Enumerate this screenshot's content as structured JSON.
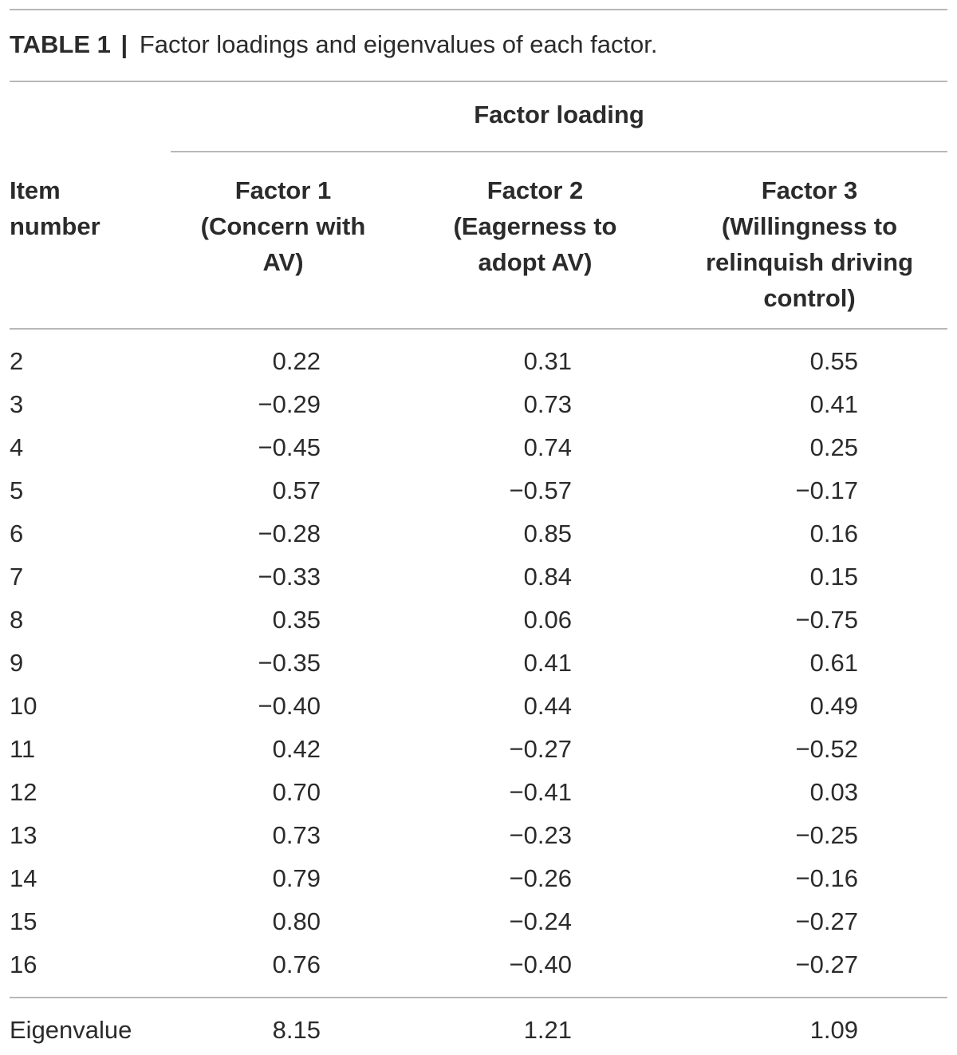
{
  "caption": {
    "label": "TABLE 1",
    "separator": "|",
    "text": "Factor loadings and eigenvalues of each factor."
  },
  "group_header": "Factor loading",
  "columns": {
    "item": [
      "Item",
      "number"
    ],
    "factor1": [
      "Factor 1",
      "(Concern with",
      "AV)"
    ],
    "factor2": [
      "Factor 2",
      "(Eagerness to",
      "adopt AV)"
    ],
    "factor3": [
      "Factor 3",
      "(Willingness to",
      "relinquish driving",
      "control)"
    ]
  },
  "rows": [
    {
      "item": "2",
      "f1": "0.22",
      "f2": "0.31",
      "f3": "0.55"
    },
    {
      "item": "3",
      "f1": "−0.29",
      "f2": "0.73",
      "f3": "0.41"
    },
    {
      "item": "4",
      "f1": "−0.45",
      "f2": "0.74",
      "f3": "0.25"
    },
    {
      "item": "5",
      "f1": "0.57",
      "f2": "−0.57",
      "f3": "−0.17"
    },
    {
      "item": "6",
      "f1": "−0.28",
      "f2": "0.85",
      "f3": "0.16"
    },
    {
      "item": "7",
      "f1": "−0.33",
      "f2": "0.84",
      "f3": "0.15"
    },
    {
      "item": "8",
      "f1": "0.35",
      "f2": "0.06",
      "f3": "−0.75"
    },
    {
      "item": "9",
      "f1": "−0.35",
      "f2": "0.41",
      "f3": "0.61"
    },
    {
      "item": "10",
      "f1": "−0.40",
      "f2": "0.44",
      "f3": "0.49"
    },
    {
      "item": "11",
      "f1": "0.42",
      "f2": "−0.27",
      "f3": "−0.52"
    },
    {
      "item": "12",
      "f1": "0.70",
      "f2": "−0.41",
      "f3": "0.03"
    },
    {
      "item": "13",
      "f1": "0.73",
      "f2": "−0.23",
      "f3": "−0.25"
    },
    {
      "item": "14",
      "f1": "0.79",
      "f2": "−0.26",
      "f3": "−0.16"
    },
    {
      "item": "15",
      "f1": "0.80",
      "f2": "−0.24",
      "f3": "−0.27"
    },
    {
      "item": "16",
      "f1": "0.76",
      "f2": "−0.40",
      "f3": "−0.27"
    }
  ],
  "footer": {
    "label": "Eigenvalue",
    "f1": "8.15",
    "f2": "1.21",
    "f3": "1.09"
  }
}
